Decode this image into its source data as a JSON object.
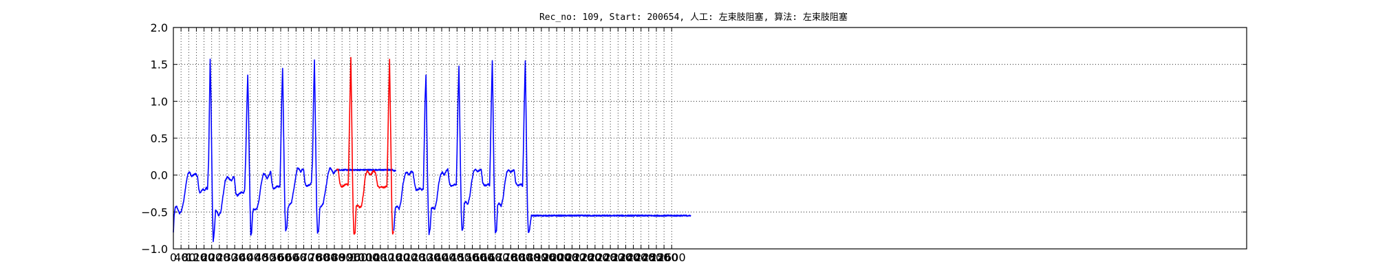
{
  "chart_data": {
    "type": "line",
    "title": "Rec_no: 109, Start: 200654, 人工: 左束肢阻塞, 算法: 左束肢阻塞",
    "xlabel": "",
    "ylabel": "",
    "xlim": [
      0,
      5600
    ],
    "ylim": [
      -1.0,
      2.0
    ],
    "grid": true,
    "y_ticks": [
      -1.0,
      -0.5,
      0.0,
      0.5,
      1.0,
      1.5,
      2.0
    ],
    "y_tick_labels": [
      "−1.0",
      "−0.5",
      "0.0",
      "0.5",
      "1.0",
      "1.5",
      "2.0"
    ],
    "x_ticks": [
      0,
      40,
      80,
      120,
      160,
      200,
      240,
      280,
      320,
      360,
      400,
      440,
      480,
      520,
      560,
      600,
      640,
      680,
      720,
      760,
      800,
      840,
      880,
      920,
      960,
      1000,
      1040,
      1080,
      1120,
      1160,
      1200,
      1240,
      1280,
      1320,
      1360,
      1400,
      1440,
      1480,
      1520,
      1560,
      1600,
      1640,
      1680,
      1720,
      1760,
      1800,
      1840,
      1880,
      1920,
      1960,
      2000,
      2040,
      2080,
      2120,
      2160,
      2200,
      2240,
      2280,
      2320,
      2360,
      2400,
      2440,
      2480,
      2520,
      2560,
      2600
    ],
    "x_tick_labels": [
      "0",
      "40",
      "80",
      "120",
      "160",
      "200",
      "240",
      "280",
      "320",
      "360",
      "400",
      "440",
      "480",
      "520",
      "560",
      "600",
      "640",
      "680",
      "720",
      "760",
      "800",
      "840",
      "880",
      "920",
      "960",
      "1000",
      "1040",
      "1080",
      "1120",
      "1160",
      "1200",
      "1240",
      "1280",
      "1320",
      "1360",
      "1400",
      "1440",
      "1480",
      "1520",
      "1560",
      "1600",
      "1640",
      "1680",
      "1720",
      "1760",
      "1800",
      "1840",
      "1880",
      "1920",
      "1960",
      "2000",
      "2040",
      "2080",
      "2120",
      "2160",
      "2200",
      "2240",
      "2280",
      "2320",
      "2360",
      "2400",
      "2440",
      "2480",
      "2520",
      "2560",
      "2600"
    ],
    "beats": [
      {
        "color": "#0000ff",
        "x": [
          0,
          160
        ],
        "knots": [
          [
            0,
            -0.78
          ],
          [
            4,
            -0.55
          ],
          [
            10,
            -0.44
          ],
          [
            16,
            -0.42
          ],
          [
            24,
            -0.47
          ],
          [
            32,
            -0.52
          ],
          [
            42,
            -0.49
          ],
          [
            54,
            -0.35
          ],
          [
            66,
            -0.12
          ],
          [
            76,
            0.02
          ],
          [
            86,
            0.04
          ],
          [
            94,
            -0.02
          ],
          [
            104,
            0.0
          ],
          [
            116,
            0.02
          ],
          [
            126,
            -0.02
          ],
          [
            132,
            -0.18
          ],
          [
            138,
            -0.24
          ],
          [
            146,
            -0.22
          ],
          [
            154,
            -0.19
          ],
          [
            160,
            -0.2
          ]
        ]
      },
      {
        "color": "#0000ff",
        "x": [
          160,
          418
        ],
        "knots": [
          [
            160,
            -0.2
          ],
          [
            164,
            -0.21
          ],
          [
            172,
            -0.17
          ],
          [
            178,
            -0.2
          ],
          [
            184,
            0.2
          ],
          [
            188,
            0.9
          ],
          [
            192,
            1.58
          ],
          [
            196,
            1.1
          ],
          [
            200,
            0.3
          ],
          [
            204,
            -0.5
          ],
          [
            208,
            -0.9
          ],
          [
            214,
            -0.75
          ],
          [
            220,
            -0.48
          ],
          [
            228,
            -0.5
          ],
          [
            236,
            -0.55
          ],
          [
            248,
            -0.5
          ],
          [
            258,
            -0.3
          ],
          [
            270,
            -0.08
          ],
          [
            282,
            -0.02
          ],
          [
            294,
            -0.06
          ],
          [
            304,
            -0.08
          ],
          [
            312,
            -0.02
          ],
          [
            318,
            -0.04
          ],
          [
            326,
            -0.25
          ],
          [
            334,
            -0.28
          ],
          [
            346,
            -0.25
          ],
          [
            356,
            -0.23
          ],
          [
            366,
            -0.24
          ],
          [
            372,
            -0.2
          ],
          [
            378,
            0.3
          ],
          [
            383,
            0.9
          ],
          [
            388,
            1.36
          ],
          [
            392,
            0.9
          ],
          [
            396,
            0.2
          ],
          [
            400,
            -0.4
          ],
          [
            404,
            -0.82
          ],
          [
            408,
            -0.78
          ],
          [
            414,
            -0.5
          ],
          [
            418,
            -0.46
          ]
        ]
      },
      {
        "color": "#0000ff",
        "x": [
          418,
          648
        ],
        "knots": [
          [
            418,
            -0.46
          ],
          [
            426,
            -0.47
          ],
          [
            436,
            -0.46
          ],
          [
            446,
            -0.35
          ],
          [
            458,
            -0.12
          ],
          [
            470,
            0.02
          ],
          [
            480,
            0.0
          ],
          [
            490,
            -0.05
          ],
          [
            498,
            0.0
          ],
          [
            508,
            0.05
          ],
          [
            514,
            -0.1
          ],
          [
            520,
            -0.18
          ],
          [
            530,
            -0.18
          ],
          [
            540,
            -0.15
          ],
          [
            550,
            -0.16
          ],
          [
            556,
            -0.15
          ],
          [
            560,
            0.3
          ],
          [
            565,
            1.0
          ],
          [
            570,
            1.45
          ],
          [
            574,
            0.8
          ],
          [
            578,
            0.1
          ],
          [
            582,
            -0.5
          ],
          [
            586,
            -0.75
          ],
          [
            592,
            -0.72
          ],
          [
            598,
            -0.45
          ],
          [
            606,
            -0.4
          ],
          [
            616,
            -0.38
          ],
          [
            628,
            -0.2
          ],
          [
            640,
            0.0
          ],
          [
            648,
            0.1
          ]
        ]
      },
      {
        "color": "#0000ff",
        "x": [
          648,
          1160
        ],
        "knots": [
          [
            648,
            0.1
          ],
          [
            656,
            0.08
          ],
          [
            664,
            0.04
          ],
          [
            672,
            0.08
          ],
          [
            680,
            0.07
          ],
          [
            686,
            -0.1
          ],
          [
            692,
            -0.15
          ],
          [
            702,
            -0.14
          ],
          [
            712,
            -0.13
          ],
          [
            720,
            -0.1
          ],
          [
            726,
            0.2
          ],
          [
            731,
            1.0
          ],
          [
            736,
            1.56
          ],
          [
            740,
            0.9
          ],
          [
            744,
            0.2
          ],
          [
            748,
            -0.5
          ],
          [
            752,
            -0.78
          ],
          [
            758,
            -0.75
          ],
          [
            764,
            -0.45
          ],
          [
            772,
            -0.42
          ],
          [
            782,
            -0.38
          ],
          [
            794,
            -0.2
          ],
          [
            806,
            0.0
          ],
          [
            816,
            0.1
          ],
          [
            826,
            0.07
          ],
          [
            836,
            0.02
          ],
          [
            844,
            0.05
          ],
          [
            852,
            0.07
          ],
          [
            1148,
            0.07
          ],
          [
            1150,
            0.06
          ]
        ]
      },
      {
        "color": "#ff0000",
        "x": [
          852,
          1150
        ],
        "knots": [
          [
            852,
            0.07
          ],
          [
            860,
            0.08
          ],
          [
            868,
            -0.1
          ],
          [
            876,
            -0.16
          ],
          [
            886,
            -0.15
          ],
          [
            896,
            -0.13
          ],
          [
            906,
            -0.12
          ],
          [
            912,
            -0.14
          ],
          [
            916,
            0.3
          ],
          [
            921,
            1.0
          ],
          [
            926,
            1.6
          ],
          [
            930,
            0.9
          ],
          [
            934,
            0.1
          ],
          [
            938,
            -0.5
          ],
          [
            942,
            -0.8
          ],
          [
            948,
            -0.78
          ],
          [
            954,
            -0.42
          ],
          [
            962,
            -0.4
          ],
          [
            972,
            -0.44
          ],
          [
            982,
            -0.42
          ],
          [
            992,
            -0.25
          ],
          [
            1002,
            0.0
          ],
          [
            1012,
            0.06
          ],
          [
            1022,
            0.02
          ],
          [
            1030,
            0.0
          ],
          [
            1038,
            0.04
          ],
          [
            1046,
            0.06
          ],
          [
            1056,
            0.02
          ],
          [
            1066,
            -0.15
          ],
          [
            1076,
            -0.17
          ],
          [
            1086,
            -0.16
          ],
          [
            1096,
            -0.17
          ],
          [
            1106,
            -0.16
          ],
          [
            1114,
            -0.15
          ],
          [
            1118,
            0.3
          ],
          [
            1123,
            1.0
          ],
          [
            1128,
            1.57
          ],
          [
            1132,
            0.9
          ],
          [
            1136,
            0.2
          ],
          [
            1140,
            -0.5
          ],
          [
            1144,
            -0.8
          ],
          [
            1150,
            -0.76
          ]
        ]
      },
      {
        "color": "#0000ff",
        "x": [
          1150,
          2700
        ],
        "knots": [
          [
            1150,
            -0.76
          ],
          [
            1158,
            -0.44
          ],
          [
            1168,
            -0.42
          ],
          [
            1178,
            -0.46
          ],
          [
            1188,
            -0.35
          ],
          [
            1198,
            -0.12
          ],
          [
            1210,
            0.02
          ],
          [
            1220,
            0.04
          ],
          [
            1230,
            0.0
          ],
          [
            1240,
            0.05
          ],
          [
            1250,
            0.04
          ],
          [
            1258,
            -0.1
          ],
          [
            1266,
            -0.2
          ],
          [
            1276,
            -0.2
          ],
          [
            1286,
            -0.18
          ],
          [
            1296,
            -0.2
          ],
          [
            1304,
            -0.19
          ],
          [
            1308,
            0.3
          ],
          [
            1313,
            1.0
          ],
          [
            1318,
            1.36
          ],
          [
            1322,
            0.7
          ],
          [
            1326,
            0.0
          ],
          [
            1330,
            -0.5
          ],
          [
            1334,
            -0.8
          ],
          [
            1340,
            -0.72
          ],
          [
            1346,
            -0.45
          ],
          [
            1354,
            -0.44
          ],
          [
            1364,
            -0.46
          ],
          [
            1374,
            -0.35
          ],
          [
            1384,
            -0.12
          ],
          [
            1394,
            0.0
          ],
          [
            1404,
            0.04
          ],
          [
            1414,
            0.0
          ],
          [
            1424,
            0.06
          ],
          [
            1432,
            0.08
          ],
          [
            1440,
            -0.1
          ],
          [
            1448,
            -0.15
          ],
          [
            1458,
            -0.14
          ],
          [
            1468,
            -0.12
          ],
          [
            1476,
            -0.14
          ],
          [
            1480,
            0.3
          ],
          [
            1485,
            1.0
          ],
          [
            1490,
            1.47
          ],
          [
            1494,
            0.8
          ],
          [
            1498,
            0.1
          ],
          [
            1502,
            -0.5
          ],
          [
            1506,
            -0.75
          ],
          [
            1512,
            -0.72
          ],
          [
            1518,
            -0.38
          ],
          [
            1526,
            -0.36
          ],
          [
            1536,
            -0.4
          ],
          [
            1546,
            -0.3
          ],
          [
            1556,
            -0.1
          ],
          [
            1566,
            0.05
          ],
          [
            1576,
            0.08
          ],
          [
            1586,
            0.05
          ],
          [
            1596,
            0.06
          ],
          [
            1606,
            0.08
          ],
          [
            1614,
            -0.1
          ],
          [
            1622,
            -0.14
          ],
          [
            1632,
            -0.14
          ],
          [
            1642,
            -0.12
          ],
          [
            1650,
            -0.14
          ],
          [
            1654,
            0.3
          ],
          [
            1659,
            1.0
          ],
          [
            1664,
            1.55
          ],
          [
            1668,
            0.9
          ],
          [
            1672,
            0.1
          ],
          [
            1676,
            -0.5
          ],
          [
            1680,
            -0.78
          ],
          [
            1686,
            -0.75
          ],
          [
            1692,
            -0.4
          ],
          [
            1700,
            -0.38
          ],
          [
            1710,
            -0.42
          ],
          [
            1720,
            -0.32
          ],
          [
            1730,
            -0.1
          ],
          [
            1740,
            0.04
          ],
          [
            1750,
            0.07
          ],
          [
            1760,
            0.04
          ],
          [
            1770,
            0.06
          ],
          [
            1778,
            0.07
          ],
          [
            1786,
            -0.1
          ],
          [
            1794,
            -0.14
          ],
          [
            1804,
            -0.14
          ],
          [
            1814,
            -0.12
          ],
          [
            1822,
            -0.15
          ],
          [
            1826,
            0.3
          ],
          [
            1831,
            1.0
          ],
          [
            1836,
            1.55
          ],
          [
            1840,
            0.9
          ],
          [
            1844,
            0.1
          ],
          [
            1848,
            -0.5
          ],
          [
            1852,
            -0.78
          ],
          [
            1858,
            -0.75
          ],
          [
            1864,
            -0.62
          ],
          [
            1868,
            -0.55
          ]
        ]
      }
    ]
  }
}
